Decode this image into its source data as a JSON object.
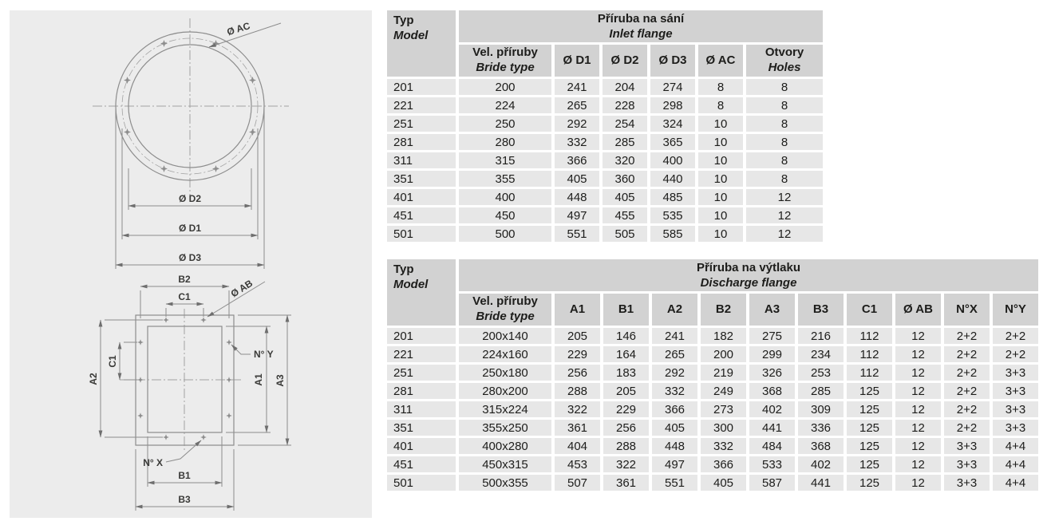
{
  "diagrams": {
    "inlet": {
      "hole_label": "Ø AC",
      "d2": "Ø D2",
      "d1": "Ø D1",
      "d3": "Ø D3"
    },
    "discharge": {
      "b2": "B2",
      "c1_top": "C1",
      "ab": "Ø AB",
      "ny": "N° Y",
      "a2": "A2",
      "c1_left": "C1",
      "a1": "A1",
      "a3": "A3",
      "nx": "N° X",
      "b1": "B1",
      "b3": "B3"
    }
  },
  "tables": {
    "inlet": {
      "corner_cs": "Typ",
      "corner_en": "Model",
      "title_cs": "Příruba na sání",
      "title_en": "Inlet flange",
      "size_col_cs": "Vel. příruby",
      "size_col_en": "Bride type",
      "holes_cs": "Otvory",
      "holes_en": "Holes",
      "headers": [
        "Ø D1",
        "Ø D2",
        "Ø D3",
        "Ø AC"
      ],
      "rows": [
        [
          "201",
          "200",
          "241",
          "204",
          "274",
          "8",
          "8"
        ],
        [
          "221",
          "224",
          "265",
          "228",
          "298",
          "8",
          "8"
        ],
        [
          "251",
          "250",
          "292",
          "254",
          "324",
          "10",
          "8"
        ],
        [
          "281",
          "280",
          "332",
          "285",
          "365",
          "10",
          "8"
        ],
        [
          "311",
          "315",
          "366",
          "320",
          "400",
          "10",
          "8"
        ],
        [
          "351",
          "355",
          "405",
          "360",
          "440",
          "10",
          "8"
        ],
        [
          "401",
          "400",
          "448",
          "405",
          "485",
          "10",
          "12"
        ],
        [
          "451",
          "450",
          "497",
          "455",
          "535",
          "10",
          "12"
        ],
        [
          "501",
          "500",
          "551",
          "505",
          "585",
          "10",
          "12"
        ]
      ]
    },
    "discharge": {
      "corner_cs": "Typ",
      "corner_en": "Model",
      "title_cs": "Příruba na výtlaku",
      "title_en": "Discharge flange",
      "size_col_cs": "Vel. příruby",
      "size_col_en": "Bride type",
      "headers": [
        "A1",
        "B1",
        "A2",
        "B2",
        "A3",
        "B3",
        "C1",
        "Ø AB",
        "N°X",
        "N°Y"
      ],
      "rows": [
        [
          "201",
          "200x140",
          "205",
          "146",
          "241",
          "182",
          "275",
          "216",
          "112",
          "12",
          "2+2",
          "2+2"
        ],
        [
          "221",
          "224x160",
          "229",
          "164",
          "265",
          "200",
          "299",
          "234",
          "112",
          "12",
          "2+2",
          "2+2"
        ],
        [
          "251",
          "250x180",
          "256",
          "183",
          "292",
          "219",
          "326",
          "253",
          "112",
          "12",
          "2+2",
          "3+3"
        ],
        [
          "281",
          "280x200",
          "288",
          "205",
          "332",
          "249",
          "368",
          "285",
          "125",
          "12",
          "2+2",
          "3+3"
        ],
        [
          "311",
          "315x224",
          "322",
          "229",
          "366",
          "273",
          "402",
          "309",
          "125",
          "12",
          "2+2",
          "3+3"
        ],
        [
          "351",
          "355x250",
          "361",
          "256",
          "405",
          "300",
          "441",
          "336",
          "125",
          "12",
          "2+2",
          "3+3"
        ],
        [
          "401",
          "400x280",
          "404",
          "288",
          "448",
          "332",
          "484",
          "368",
          "125",
          "12",
          "3+3",
          "4+4"
        ],
        [
          "451",
          "450x315",
          "453",
          "322",
          "497",
          "366",
          "533",
          "402",
          "125",
          "12",
          "3+3",
          "4+4"
        ],
        [
          "501",
          "500x355",
          "507",
          "361",
          "551",
          "405",
          "587",
          "441",
          "125",
          "12",
          "3+3",
          "4+4"
        ]
      ]
    }
  },
  "colors": {
    "panel_bg": "#ececec",
    "header_cell_bg": "#d2d2d2",
    "data_cell_bg": "#e7e7e7",
    "text": "#1d1d1b",
    "drawing_line": "#8d8d8d"
  }
}
